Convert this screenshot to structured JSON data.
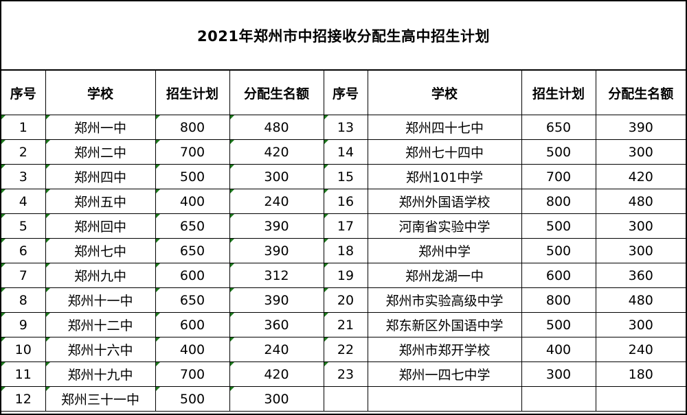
{
  "title": "2021年郑州市中招接收分配生高中招生计划",
  "headers": [
    "序号",
    "学校",
    "招生计划",
    "分配生名额",
    "序号",
    "学校",
    "招生计划",
    "分配生名额"
  ],
  "left_rows": [
    {
      "no": "1",
      "school": "郑州一中",
      "plan": "800",
      "quota": "480"
    },
    {
      "no": "2",
      "school": "郑州二中",
      "plan": "700",
      "quota": "420"
    },
    {
      "no": "3",
      "school": "郑州四中",
      "plan": "500",
      "quota": "300"
    },
    {
      "no": "4",
      "school": "郑州五中",
      "plan": "400",
      "quota": "240"
    },
    {
      "no": "5",
      "school": "郑州回中",
      "plan": "650",
      "quota": "390"
    },
    {
      "no": "6",
      "school": "郑州七中",
      "plan": "650",
      "quota": "390"
    },
    {
      "no": "7",
      "school": "郑州九中",
      "plan": "600",
      "quota": "312"
    },
    {
      "no": "8",
      "school": "郑州十一中",
      "plan": "650",
      "quota": "390"
    },
    {
      "no": "9",
      "school": "郑州十二中",
      "plan": "600",
      "quota": "360"
    },
    {
      "no": "10",
      "school": "郑州十六中",
      "plan": "400",
      "quota": "240"
    },
    {
      "no": "11",
      "school": "郑州十九中",
      "plan": "700",
      "quota": "420"
    },
    {
      "no": "12",
      "school": "郑州三十一中",
      "plan": "500",
      "quota": "300"
    }
  ],
  "right_rows": [
    {
      "no": "13",
      "school": "郑州四十七中",
      "plan": "650",
      "quota": "390"
    },
    {
      "no": "14",
      "school": "郑州七十四中",
      "plan": "500",
      "quota": "300"
    },
    {
      "no": "15",
      "school": "郑州101中学",
      "plan": "700",
      "quota": "420"
    },
    {
      "no": "16",
      "school": "郑州外国语学校",
      "plan": "800",
      "quota": "480"
    },
    {
      "no": "17",
      "school": "河南省实验中学",
      "plan": "500",
      "quota": "300"
    },
    {
      "no": "18",
      "school": "郑州中学",
      "plan": "500",
      "quota": "300"
    },
    {
      "no": "19",
      "school": "郑州龙湖一中",
      "plan": "600",
      "quota": "360"
    },
    {
      "no": "20",
      "school": "郑州市实验高级中学",
      "plan": "800",
      "quota": "480"
    },
    {
      "no": "21",
      "school": "郑东新区外国语中学",
      "plan": "500",
      "quota": "300"
    },
    {
      "no": "22",
      "school": "郑州市郑开学校",
      "plan": "400",
      "quota": "240"
    },
    {
      "no": "23",
      "school": "郑州一四七中学",
      "plan": "300",
      "quota": "180"
    },
    {
      "no": "",
      "school": "",
      "plan": "",
      "quota": ""
    }
  ],
  "colors": {
    "text": "#000000",
    "border": "#000000",
    "cell_marker": "#1f7a1f",
    "background": "#ffffff"
  }
}
